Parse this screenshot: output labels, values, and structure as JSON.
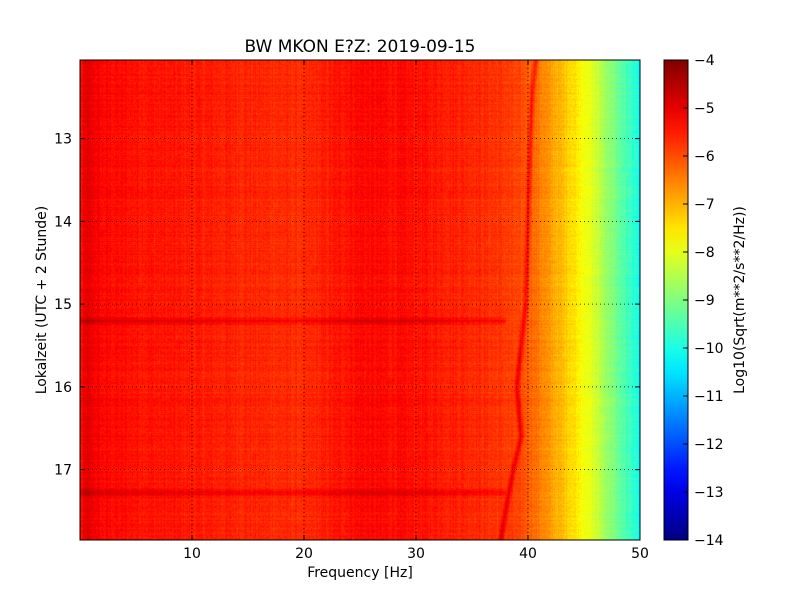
{
  "chart_data": {
    "type": "heatmap",
    "title": "BW MKON E?Z: 2019-09-15",
    "xlabel": "Frequency [Hz]",
    "ylabel": "Lokalzeit (UTC + 2 Stunde)",
    "xlim": [
      0,
      50
    ],
    "ylim": [
      12.05,
      17.85
    ],
    "y_inverted": true,
    "x_ticks": [
      10,
      20,
      30,
      40,
      50
    ],
    "x_tick_labels": [
      "10",
      "20",
      "30",
      "40",
      "50"
    ],
    "y_ticks": [
      13,
      14,
      15,
      16,
      17
    ],
    "y_tick_labels": [
      "13",
      "14",
      "15",
      "16",
      "17"
    ],
    "grid": true,
    "colormap": "jet",
    "colorbar": {
      "label": "Log10(Sqrt(m**2/s**2/Hz))",
      "range": [
        -14,
        -4
      ],
      "ticks": [
        -4,
        -5,
        -6,
        -7,
        -8,
        -9,
        -10,
        -11,
        -12,
        -13,
        -14
      ],
      "tick_labels": [
        "−4",
        "−5",
        "−6",
        "−7",
        "−8",
        "−9",
        "−10",
        "−11",
        "−12",
        "−13",
        "−14"
      ]
    },
    "spectral_profile": {
      "frequency_hz": [
        0,
        0.5,
        2,
        5,
        10,
        15,
        20,
        25,
        30,
        35,
        38,
        40,
        42,
        44,
        46,
        48,
        50
      ],
      "log10_amplitude": [
        -5.5,
        -5.0,
        -5.3,
        -5.4,
        -5.5,
        -5.6,
        -5.7,
        -5.3,
        -5.4,
        -5.6,
        -5.8,
        -6.1,
        -6.8,
        -7.4,
        -8.2,
        -9.2,
        -10.1
      ]
    },
    "broadband_events": [
      {
        "time": 15.2,
        "log10_amplitude": -5.0
      },
      {
        "time": 17.28,
        "log10_amplitude": -5.2
      }
    ],
    "drifting_line": {
      "time": [
        12.05,
        12.4,
        13.0,
        14.0,
        15.0,
        15.5,
        16.0,
        16.6,
        17.0,
        17.5,
        17.85
      ],
      "frequency_hz": [
        40.7,
        40.4,
        40.2,
        40.0,
        39.8,
        39.4,
        39.0,
        39.4,
        38.7,
        38.0,
        37.6
      ]
    }
  }
}
